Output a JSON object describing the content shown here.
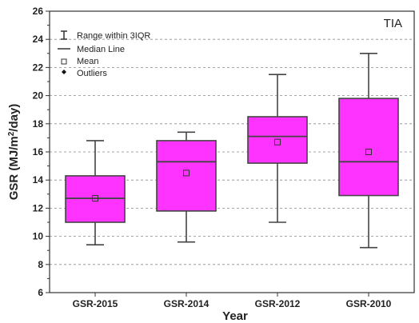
{
  "chart_data": {
    "type": "boxplot",
    "annotation": "TIA",
    "xlabel": "Year",
    "ylabel_main": "GSR (MJ/m",
    "ylabel_sup": "2",
    "ylabel_end": "/day)",
    "ylim": [
      6,
      26
    ],
    "yticks": [
      6,
      8,
      10,
      12,
      14,
      16,
      18,
      20,
      22,
      24,
      26
    ],
    "grid": "horizontal dashed",
    "box_color": "#ff33ff",
    "legend": {
      "position": "top-left",
      "items": [
        {
          "symbol": "range-icon",
          "label": "Range within 3IQR"
        },
        {
          "symbol": "median-line-icon",
          "label": "Median Line"
        },
        {
          "symbol": "hollow-square-icon",
          "label": "Mean"
        },
        {
          "symbol": "filled-diamond-icon",
          "label": "Outliers"
        }
      ]
    },
    "categories": [
      "GSR-2015",
      "GSR-2014",
      "GSR-2012",
      "GSR-2010"
    ],
    "boxes": [
      {
        "category": "GSR-2015",
        "min": 9.4,
        "q1": 11.0,
        "median": 12.7,
        "q3": 14.3,
        "max": 16.8,
        "mean": 12.7
      },
      {
        "category": "GSR-2014",
        "min": 9.6,
        "q1": 11.8,
        "median": 15.3,
        "q3": 16.8,
        "max": 17.4,
        "mean": 14.5
      },
      {
        "category": "GSR-2012",
        "min": 11.0,
        "q1": 15.2,
        "median": 17.1,
        "q3": 18.5,
        "max": 21.5,
        "mean": 16.7
      },
      {
        "category": "GSR-2010",
        "min": 9.2,
        "q1": 12.9,
        "median": 15.3,
        "q3": 19.8,
        "max": 23.0,
        "mean": 16.0
      }
    ]
  }
}
